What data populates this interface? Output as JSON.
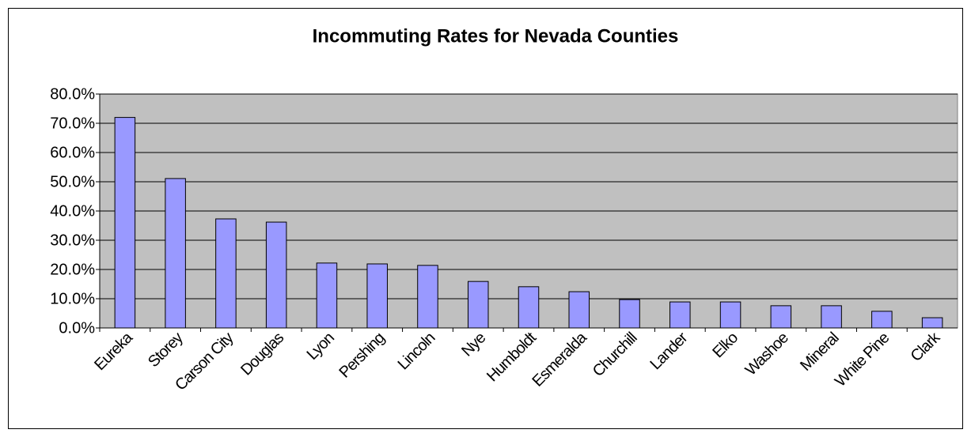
{
  "chart_data": {
    "type": "bar",
    "title": "Incommuting Rates for Nevada Counties",
    "categories": [
      "Eureka",
      "Storey",
      "Carson City",
      "Douglas",
      "Lyon",
      "Pershing",
      "Lincoln",
      "Nye",
      "Humboldt",
      "Esmeralda",
      "Churchill",
      "Lander",
      "Elko",
      "Washoe",
      "Mineral",
      "White Pine",
      "Clark"
    ],
    "values": [
      72.0,
      51.1,
      37.3,
      36.2,
      22.2,
      21.9,
      21.4,
      15.9,
      14.1,
      12.4,
      9.7,
      8.9,
      8.9,
      7.6,
      7.6,
      5.7,
      3.5
    ],
    "color": "#9999ff",
    "ylim": [
      0,
      80
    ],
    "yticks": [
      {
        "value": 0,
        "label": "0.0%"
      },
      {
        "value": 10,
        "label": "10.0%"
      },
      {
        "value": 20,
        "label": "20.0%"
      },
      {
        "value": 30,
        "label": "30.0%"
      },
      {
        "value": 40,
        "label": "40.0%"
      },
      {
        "value": 50,
        "label": "50.0%"
      },
      {
        "value": 60,
        "label": "60.0%"
      },
      {
        "value": 70,
        "label": "70.0%"
      },
      {
        "value": 80,
        "label": "80.0%"
      }
    ],
    "grid": true
  }
}
